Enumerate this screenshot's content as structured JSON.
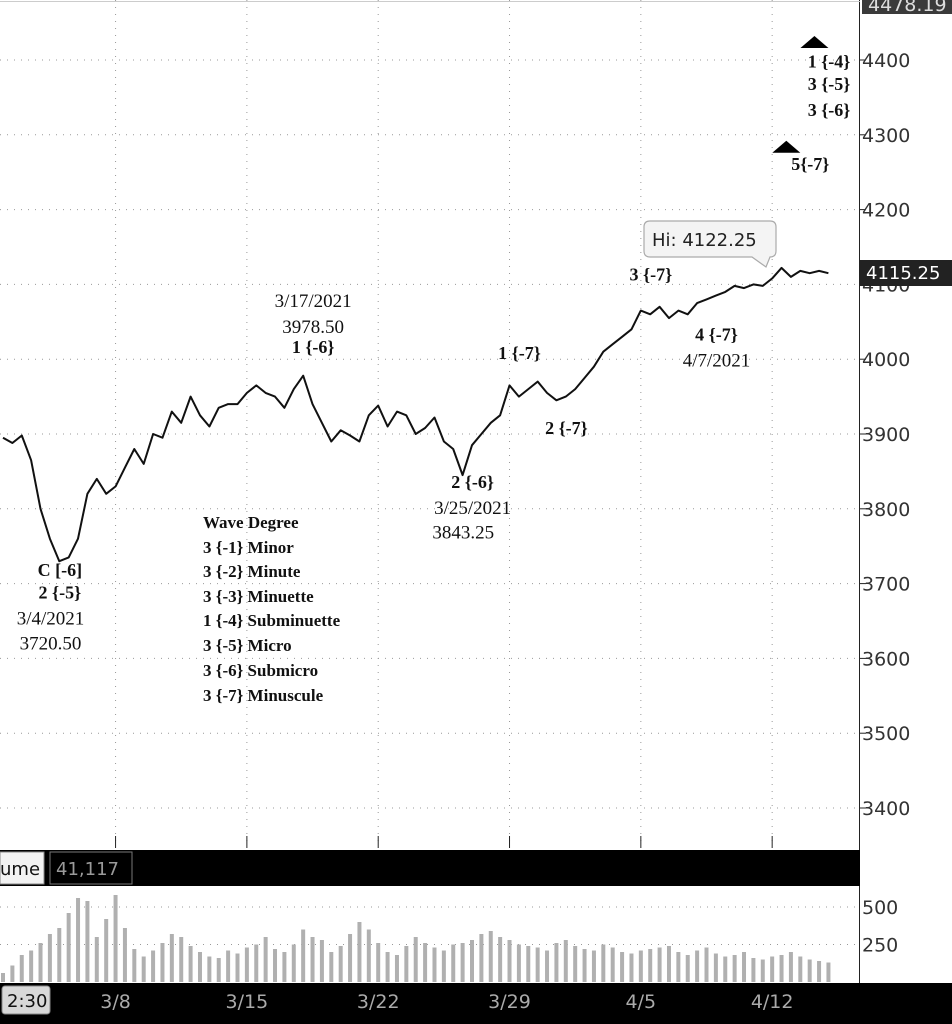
{
  "chart_data": {
    "type": "line",
    "price_axis": {
      "ticks": [
        "4400",
        "4300",
        "4200",
        "4100",
        "4000",
        "3900",
        "3800",
        "3700",
        "3600",
        "3500",
        "3400"
      ],
      "tick_values": [
        4400,
        4300,
        4200,
        4100,
        4000,
        3900,
        3800,
        3700,
        3600,
        3500,
        3400
      ],
      "top_label": "4478.19",
      "last_price": "4115.25",
      "last_value": 4115.25
    },
    "x_axis": {
      "labels": [
        "3/8",
        "3/15",
        "3/22",
        "3/29",
        "4/5",
        "4/12"
      ],
      "index": [
        12,
        26,
        40,
        54,
        68,
        82
      ],
      "time_label": "2:30"
    },
    "price_series": {
      "name": "",
      "index_range": [
        0,
        88
      ],
      "points": [
        [
          0,
          3895
        ],
        [
          1,
          3888
        ],
        [
          2,
          3898
        ],
        [
          3,
          3865
        ],
        [
          4,
          3800
        ],
        [
          5,
          3760
        ],
        [
          6,
          3730
        ],
        [
          7,
          3735
        ],
        [
          8,
          3760
        ],
        [
          9,
          3820
        ],
        [
          10,
          3840
        ],
        [
          11,
          3820
        ],
        [
          12,
          3830
        ],
        [
          13,
          3855
        ],
        [
          14,
          3880
        ],
        [
          15,
          3860
        ],
        [
          16,
          3900
        ],
        [
          17,
          3895
        ],
        [
          18,
          3930
        ],
        [
          19,
          3915
        ],
        [
          20,
          3950
        ],
        [
          21,
          3925
        ],
        [
          22,
          3910
        ],
        [
          23,
          3935
        ],
        [
          24,
          3940
        ],
        [
          25,
          3940
        ],
        [
          26,
          3955
        ],
        [
          27,
          3965
        ],
        [
          28,
          3955
        ],
        [
          29,
          3950
        ],
        [
          30,
          3935
        ],
        [
          31,
          3960
        ],
        [
          32,
          3978
        ],
        [
          33,
          3940
        ],
        [
          34,
          3915
        ],
        [
          35,
          3890
        ],
        [
          36,
          3905
        ],
        [
          37,
          3898
        ],
        [
          38,
          3890
        ],
        [
          39,
          3925
        ],
        [
          40,
          3938
        ],
        [
          41,
          3910
        ],
        [
          42,
          3930
        ],
        [
          43,
          3925
        ],
        [
          44,
          3900
        ],
        [
          45,
          3908
        ],
        [
          46,
          3922
        ],
        [
          47,
          3890
        ],
        [
          48,
          3880
        ],
        [
          49,
          3845
        ],
        [
          50,
          3885
        ],
        [
          51,
          3900
        ],
        [
          52,
          3915
        ],
        [
          53,
          3925
        ],
        [
          54,
          3965
        ],
        [
          55,
          3950
        ],
        [
          56,
          3960
        ],
        [
          57,
          3970
        ],
        [
          58,
          3955
        ],
        [
          59,
          3945
        ],
        [
          60,
          3950
        ],
        [
          61,
          3960
        ],
        [
          62,
          3975
        ],
        [
          63,
          3990
        ],
        [
          64,
          4010
        ],
        [
          65,
          4020
        ],
        [
          66,
          4030
        ],
        [
          67,
          4040
        ],
        [
          68,
          4065
        ],
        [
          69,
          4060
        ],
        [
          70,
          4070
        ],
        [
          71,
          4055
        ],
        [
          72,
          4065
        ],
        [
          73,
          4060
        ],
        [
          74,
          4075
        ],
        [
          75,
          4080
        ],
        [
          76,
          4085
        ],
        [
          77,
          4090
        ],
        [
          78,
          4098
        ],
        [
          79,
          4095
        ],
        [
          80,
          4100
        ],
        [
          81,
          4098
        ],
        [
          82,
          4108
        ],
        [
          83,
          4122
        ],
        [
          84,
          4110
        ],
        [
          85,
          4118
        ],
        [
          86,
          4115
        ],
        [
          87,
          4118
        ],
        [
          88,
          4115
        ]
      ]
    },
    "volume": {
      "label": "ume",
      "value": "41,117",
      "ticks": [
        "500",
        "250"
      ],
      "tick_values": [
        500,
        250
      ],
      "bars": [
        60,
        110,
        180,
        210,
        260,
        320,
        360,
        460,
        560,
        540,
        300,
        420,
        580,
        360,
        220,
        170,
        210,
        260,
        320,
        300,
        240,
        200,
        170,
        160,
        210,
        190,
        230,
        250,
        300,
        220,
        200,
        250,
        350,
        300,
        280,
        200,
        240,
        320,
        400,
        350,
        260,
        200,
        180,
        240,
        300,
        260,
        230,
        210,
        250,
        260,
        280,
        320,
        340,
        300,
        280,
        250,
        240,
        230,
        210,
        260,
        280,
        240,
        220,
        210,
        250,
        230,
        200,
        190,
        210,
        220,
        230,
        240,
        200,
        180,
        210,
        230,
        190,
        170,
        180,
        200,
        160,
        150,
        170,
        180,
        200,
        170,
        150,
        140,
        130
      ]
    },
    "annotations": {
      "hi_tooltip": "Hi: 4122.25",
      "wave_labels": [
        {
          "text": "C [-6]",
          "x_index": 5,
          "price": 3710
        },
        {
          "text": "2 {-5}",
          "x_index": 5,
          "price": 3680
        },
        {
          "text": "3/4/2021",
          "x_index": 4,
          "price": 3645
        },
        {
          "text": "3720.50",
          "x_index": 4,
          "price": 3612
        },
        {
          "text": "3/17/2021",
          "x_index": 32,
          "price": 4070
        },
        {
          "text": "3978.50",
          "x_index": 32,
          "price": 4035
        },
        {
          "text": "1 {-6}",
          "x_index": 32,
          "price": 4008
        },
        {
          "text": "1 {-7}",
          "x_index": 54,
          "price": 4000
        },
        {
          "text": "2 {-7}",
          "x_index": 59,
          "price": 3900
        },
        {
          "text": "2 {-6}",
          "x_index": 49,
          "price": 3828
        },
        {
          "text": "3/25/2021",
          "x_index": 49,
          "price": 3793
        },
        {
          "text": "3843.25",
          "x_index": 48,
          "price": 3760
        },
        {
          "text": "3 {-7}",
          "x_index": 68,
          "price": 4105
        },
        {
          "text": "4 {-7}",
          "x_index": 75,
          "price": 4025
        },
        {
          "text": "4/7/2021",
          "x_index": 75,
          "price": 3990
        },
        {
          "text": "1 {-4}",
          "x_index": 87,
          "price": 4390
        },
        {
          "text": "3 {-5}",
          "x_index": 87,
          "price": 4360
        },
        {
          "text": "3 {-6}",
          "x_index": 87,
          "price": 4325
        },
        {
          "text": "5{-7}",
          "x_index": 85,
          "price": 4253
        }
      ],
      "triangles": [
        {
          "x_index": 88,
          "price": 4424
        },
        {
          "x_index": 85,
          "price": 4284
        }
      ],
      "wave_degree_legend": {
        "title": "Wave Degree",
        "items": [
          "3 {-1} Minor",
          "3 {-2} Minute",
          "3 {-3} Minuette",
          "1 {-4} Subminuette",
          "3 {-5} Micro",
          "3 {-6} Submicro",
          "3 {-7} Minuscule"
        ]
      }
    }
  }
}
